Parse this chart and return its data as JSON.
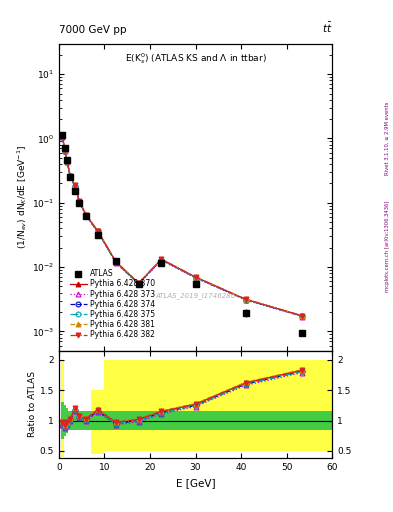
{
  "title_top": "7000 GeV pp",
  "title_right": "tt",
  "panel_title": "E(K$^0_s$) (ATLAS KS and \\Lambda in ttbar)",
  "watermark": "ATLAS_2019_I1746286",
  "right_label": "Rivet 3.1.10, ≥ 2.9M events",
  "right_label2": "mcplots.cern.ch [arXiv:1306.3436]",
  "ylabel_main": "(1/N$_{ev}$) dN$_K$/dE [GeV$^{-1}$]",
  "ylabel_ratio": "Ratio to ATLAS",
  "xlabel": "E [GeV]",
  "x_edges": [
    0.5,
    1.0,
    1.5,
    2.0,
    3.0,
    4.0,
    5.0,
    7.0,
    10.0,
    15.0,
    20.0,
    25.0,
    35.0,
    47.0,
    60.0
  ],
  "x_centers": [
    0.75,
    1.25,
    1.75,
    2.5,
    3.5,
    4.5,
    6.0,
    8.5,
    12.5,
    17.5,
    22.5,
    30.0,
    41.0,
    53.5
  ],
  "atlas_y": [
    1.15,
    0.72,
    0.46,
    0.255,
    0.155,
    0.098,
    0.062,
    0.031,
    0.0125,
    0.0055,
    0.0115,
    0.0055,
    0.00195,
    0.00095
  ],
  "atlas_yerr_lo": [
    0.04,
    0.02,
    0.015,
    0.01,
    0.007,
    0.005,
    0.003,
    0.0015,
    0.0006,
    0.0003,
    0.0008,
    0.0004,
    0.00025,
    0.0001
  ],
  "atlas_yerr_hi": [
    0.04,
    0.02,
    0.015,
    0.01,
    0.007,
    0.005,
    0.003,
    0.0015,
    0.0006,
    0.0003,
    0.0008,
    0.0004,
    0.00025,
    0.0001
  ],
  "ratio_370": [
    0.98,
    0.92,
    0.97,
    1.03,
    1.2,
    1.08,
    1.03,
    1.18,
    0.97,
    1.02,
    1.15,
    1.27,
    1.62,
    1.83
  ],
  "ratio_373": [
    0.92,
    0.88,
    0.93,
    0.99,
    1.16,
    1.04,
    0.99,
    1.14,
    0.93,
    0.98,
    1.11,
    1.23,
    1.58,
    1.79
  ],
  "ratio_374": [
    0.96,
    0.9,
    0.95,
    1.01,
    1.18,
    1.06,
    1.01,
    1.16,
    0.95,
    1.0,
    1.13,
    1.25,
    1.6,
    1.81
  ],
  "ratio_375": [
    0.96,
    0.9,
    0.95,
    1.01,
    1.18,
    1.06,
    1.01,
    1.16,
    0.95,
    1.0,
    1.13,
    1.25,
    1.6,
    1.81
  ],
  "ratio_381": [
    0.99,
    0.93,
    0.98,
    1.04,
    1.21,
    1.09,
    1.04,
    1.19,
    0.98,
    1.03,
    1.16,
    1.28,
    1.63,
    1.84
  ],
  "ratio_382": [
    0.98,
    0.92,
    0.97,
    1.03,
    1.2,
    1.08,
    1.03,
    1.18,
    0.97,
    1.02,
    1.15,
    1.27,
    1.62,
    1.83
  ],
  "yellow_band_lo": [
    0.4,
    null,
    null,
    null,
    null,
    null,
    null,
    0.45,
    0.5,
    0.5,
    0.5,
    0.5,
    0.5,
    0.5
  ],
  "yellow_band_hi": [
    2.0,
    null,
    null,
    null,
    null,
    null,
    null,
    1.5,
    2.0,
    2.0,
    2.0,
    2.0,
    2.0,
    2.0
  ],
  "green_band_lo": [
    0.7,
    0.75,
    0.8,
    0.85,
    0.85,
    0.85,
    0.85,
    0.85,
    0.85,
    0.85,
    0.85,
    0.85,
    0.85,
    0.85
  ],
  "green_band_hi": [
    1.3,
    1.25,
    1.2,
    1.15,
    1.15,
    1.15,
    1.15,
    1.15,
    1.15,
    1.15,
    1.15,
    1.15,
    1.15,
    1.15
  ],
  "mc_styles": [
    {
      "label": "Pythia 6.428 370",
      "color": "#cc0000",
      "marker": "^",
      "ls": "-",
      "mfc": "#cc0000"
    },
    {
      "label": "Pythia 6.428 373",
      "color": "#cc00cc",
      "marker": "^",
      "ls": ":",
      "mfc": "none"
    },
    {
      "label": "Pythia 6.428 374",
      "color": "#0000cc",
      "marker": "o",
      "ls": "--",
      "mfc": "none"
    },
    {
      "label": "Pythia 6.428 375",
      "color": "#00aaaa",
      "marker": "o",
      "ls": "-.",
      "mfc": "none"
    },
    {
      "label": "Pythia 6.428 381",
      "color": "#cc8800",
      "marker": "^",
      "ls": "--",
      "mfc": "#cc8800"
    },
    {
      "label": "Pythia 6.428 382",
      "color": "#dd2222",
      "marker": "v",
      "ls": "-.",
      "mfc": "#dd2222"
    }
  ],
  "xlim": [
    0,
    60
  ],
  "ylim_main": [
    0.0005,
    30
  ],
  "ylim_ratio": [
    0.38,
    2.15
  ],
  "ratio_yticks": [
    0.5,
    1.0,
    1.5,
    2.0
  ],
  "ratio_yticklabels": [
    "0.5",
    "1",
    "1.5",
    "2"
  ]
}
